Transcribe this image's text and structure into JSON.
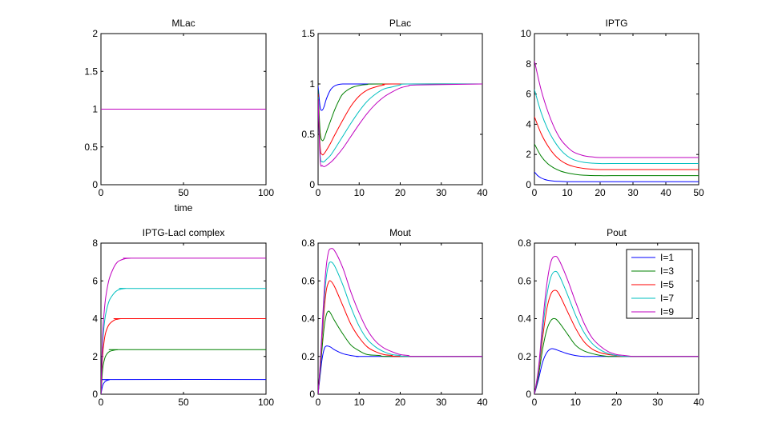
{
  "chart_data": [
    {
      "type": "line",
      "title": "MLac",
      "xlabel": "time",
      "ylabel": "",
      "xlim": [
        0,
        100
      ],
      "ylim": [
        0,
        2
      ],
      "xticks": [
        0,
        50,
        100
      ],
      "xtick_labels": [
        "0",
        "50",
        "100"
      ],
      "yticks": [
        0,
        0.5,
        1,
        1.5,
        2
      ],
      "ytick_labels": [
        "0",
        "0.5",
        "1",
        "1.5",
        "2"
      ],
      "series": [
        {
          "name": "I=1",
          "color": "#0000ff",
          "x": [
            0,
            100
          ],
          "y": [
            1,
            1
          ]
        },
        {
          "name": "I=3",
          "color": "#008000",
          "x": [
            0,
            100
          ],
          "y": [
            1,
            1
          ]
        },
        {
          "name": "I=5",
          "color": "#ff0000",
          "x": [
            0,
            100
          ],
          "y": [
            1,
            1
          ]
        },
        {
          "name": "I=7",
          "color": "#00bfbf",
          "x": [
            0,
            100
          ],
          "y": [
            1,
            1
          ]
        },
        {
          "name": "I=9",
          "color": "#bf00bf",
          "x": [
            0,
            100
          ],
          "y": [
            1,
            1
          ]
        }
      ]
    },
    {
      "type": "line",
      "title": "PLac",
      "xlabel": "",
      "ylabel": "",
      "xlim": [
        0,
        40
      ],
      "ylim": [
        0,
        1.5
      ],
      "xticks": [
        0,
        10,
        20,
        30,
        40
      ],
      "xtick_labels": [
        "0",
        "10",
        "20",
        "30",
        "40"
      ],
      "yticks": [
        0,
        0.5,
        1,
        1.5
      ],
      "ytick_labels": [
        "0",
        "0.5",
        "1",
        "1.5"
      ],
      "series": [
        {
          "name": "I=1",
          "color": "#0000ff",
          "x": [
            0,
            0.5,
            1,
            1.5,
            2,
            3,
            4,
            5,
            6,
            8,
            10,
            40
          ],
          "y": [
            0.98,
            0.77,
            0.74,
            0.78,
            0.85,
            0.94,
            0.98,
            0.995,
            1.0,
            1.0,
            1.0,
            1.0
          ]
        },
        {
          "name": "I=3",
          "color": "#008000",
          "x": [
            0,
            0.5,
            1,
            1.5,
            2,
            3,
            4,
            5,
            6,
            8,
            10,
            12,
            15,
            40
          ],
          "y": [
            0.94,
            0.52,
            0.44,
            0.46,
            0.52,
            0.63,
            0.74,
            0.83,
            0.9,
            0.96,
            0.985,
            0.995,
            1.0,
            1.0
          ]
        },
        {
          "name": "I=5",
          "color": "#ff0000",
          "x": [
            0,
            0.5,
            1,
            1.5,
            2,
            3,
            4,
            6,
            8,
            10,
            12,
            14,
            16,
            18,
            40
          ],
          "y": [
            0.9,
            0.38,
            0.3,
            0.31,
            0.34,
            0.41,
            0.49,
            0.64,
            0.78,
            0.88,
            0.94,
            0.97,
            0.99,
            1.0,
            1.0
          ]
        },
        {
          "name": "I=7",
          "color": "#00bfbf",
          "x": [
            0,
            0.5,
            1,
            1.5,
            2,
            3,
            4,
            6,
            8,
            10,
            12,
            14,
            16,
            18,
            20,
            22,
            40
          ],
          "y": [
            0.87,
            0.3,
            0.23,
            0.23,
            0.25,
            0.29,
            0.35,
            0.48,
            0.61,
            0.73,
            0.83,
            0.9,
            0.95,
            0.97,
            0.99,
            1.0,
            1.0
          ]
        },
        {
          "name": "I=9",
          "color": "#bf00bf",
          "x": [
            0,
            0.5,
            1,
            1.5,
            2,
            3,
            4,
            6,
            8,
            10,
            12,
            14,
            16,
            18,
            20,
            22,
            24,
            40
          ],
          "y": [
            0.85,
            0.25,
            0.19,
            0.18,
            0.19,
            0.22,
            0.26,
            0.36,
            0.48,
            0.6,
            0.71,
            0.8,
            0.87,
            0.92,
            0.96,
            0.98,
            0.99,
            1.0
          ]
        }
      ]
    },
    {
      "type": "line",
      "title": "IPTG",
      "xlabel": "",
      "ylabel": "",
      "xlim": [
        0,
        50
      ],
      "ylim": [
        0,
        10
      ],
      "xticks": [
        0,
        10,
        20,
        30,
        40,
        50
      ],
      "xtick_labels": [
        "0",
        "10",
        "20",
        "30",
        "40",
        "50"
      ],
      "yticks": [
        0,
        2,
        4,
        6,
        8,
        10
      ],
      "ytick_labels": [
        "0",
        "2",
        "4",
        "6",
        "8",
        "10"
      ],
      "series": [
        {
          "name": "I=1",
          "color": "#0000ff",
          "x": [
            0,
            1,
            2,
            3,
            4,
            6,
            8,
            10,
            15,
            20,
            50
          ],
          "y": [
            0.85,
            0.6,
            0.45,
            0.36,
            0.3,
            0.24,
            0.22,
            0.2,
            0.2,
            0.2,
            0.2
          ]
        },
        {
          "name": "I=3",
          "color": "#008000",
          "x": [
            0,
            2,
            4,
            6,
            8,
            10,
            12,
            15,
            20,
            25,
            50
          ],
          "y": [
            2.7,
            1.9,
            1.4,
            1.1,
            0.9,
            0.78,
            0.7,
            0.63,
            0.6,
            0.6,
            0.6
          ]
        },
        {
          "name": "I=5",
          "color": "#ff0000",
          "x": [
            0,
            2,
            4,
            6,
            8,
            10,
            12,
            15,
            18,
            20,
            25,
            50
          ],
          "y": [
            4.5,
            3.4,
            2.6,
            2.0,
            1.6,
            1.35,
            1.2,
            1.08,
            1.02,
            1.0,
            1.0,
            1.0
          ]
        },
        {
          "name": "I=7",
          "color": "#00bfbf",
          "x": [
            0,
            2,
            4,
            6,
            8,
            10,
            12,
            15,
            18,
            20,
            25,
            50
          ],
          "y": [
            6.3,
            4.8,
            3.7,
            2.9,
            2.3,
            1.9,
            1.65,
            1.48,
            1.42,
            1.4,
            1.4,
            1.4
          ]
        },
        {
          "name": "I=9",
          "color": "#bf00bf",
          "x": [
            0,
            2,
            4,
            6,
            8,
            10,
            12,
            15,
            18,
            20,
            25,
            50
          ],
          "y": [
            8.2,
            6.3,
            4.9,
            3.8,
            3.0,
            2.5,
            2.15,
            1.92,
            1.83,
            1.8,
            1.8,
            1.8
          ]
        }
      ]
    },
    {
      "type": "line",
      "title": "IPTG-LacI complex",
      "xlabel": "",
      "ylabel": "",
      "xlim": [
        0,
        100
      ],
      "ylim": [
        0,
        8
      ],
      "xticks": [
        0,
        50,
        100
      ],
      "xtick_labels": [
        "0",
        "50",
        "100"
      ],
      "yticks": [
        0,
        2,
        4,
        6,
        8
      ],
      "ytick_labels": [
        "0",
        "2",
        "4",
        "6",
        "8"
      ],
      "series": [
        {
          "name": "I=1",
          "color": "#0000ff",
          "x": [
            0,
            1,
            2,
            3,
            5,
            8,
            100
          ],
          "y": [
            0,
            0.45,
            0.62,
            0.7,
            0.76,
            0.78,
            0.78
          ]
        },
        {
          "name": "I=3",
          "color": "#008000",
          "x": [
            0,
            1,
            2,
            3,
            5,
            8,
            10,
            12,
            100
          ],
          "y": [
            0,
            1.3,
            1.8,
            2.05,
            2.25,
            2.33,
            2.35,
            2.36,
            2.36
          ]
        },
        {
          "name": "I=5",
          "color": "#ff0000",
          "x": [
            0,
            1,
            2,
            3,
            5,
            8,
            10,
            12,
            15,
            100
          ],
          "y": [
            0,
            2.0,
            2.85,
            3.3,
            3.7,
            3.92,
            3.97,
            4.0,
            4.0,
            4.0
          ]
        },
        {
          "name": "I=7",
          "color": "#00bfbf",
          "x": [
            0,
            1,
            2,
            3,
            5,
            8,
            10,
            12,
            15,
            18,
            100
          ],
          "y": [
            0,
            2.6,
            3.7,
            4.3,
            4.95,
            5.35,
            5.5,
            5.56,
            5.6,
            5.6,
            5.6
          ]
        },
        {
          "name": "I=9",
          "color": "#bf00bf",
          "x": [
            0,
            1,
            2,
            3,
            5,
            8,
            10,
            12,
            15,
            18,
            20,
            100
          ],
          "y": [
            0,
            3.1,
            4.4,
            5.2,
            6.1,
            6.75,
            7.0,
            7.1,
            7.18,
            7.2,
            7.2,
            7.2
          ]
        }
      ]
    },
    {
      "type": "line",
      "title": "Mout",
      "xlabel": "",
      "ylabel": "",
      "xlim": [
        0,
        40
      ],
      "ylim": [
        0,
        0.8
      ],
      "xticks": [
        0,
        10,
        20,
        30,
        40
      ],
      "xtick_labels": [
        "0",
        "10",
        "20",
        "30",
        "40"
      ],
      "yticks": [
        0,
        0.2,
        0.4,
        0.6,
        0.8
      ],
      "ytick_labels": [
        "0",
        "0.2",
        "0.4",
        "0.6",
        "0.8"
      ],
      "series": [
        {
          "name": "I=1",
          "color": "#0000ff",
          "x": [
            0,
            0.5,
            1,
            1.5,
            2,
            3,
            4,
            6,
            8,
            10,
            12,
            40
          ],
          "y": [
            0,
            0.1,
            0.19,
            0.24,
            0.255,
            0.25,
            0.235,
            0.215,
            0.205,
            0.2,
            0.2,
            0.2
          ]
        },
        {
          "name": "I=3",
          "color": "#008000",
          "x": [
            0,
            0.5,
            1,
            1.5,
            2,
            2.5,
            3,
            4,
            6,
            8,
            10,
            12,
            15,
            18,
            40
          ],
          "y": [
            0,
            0.12,
            0.25,
            0.36,
            0.42,
            0.44,
            0.43,
            0.39,
            0.32,
            0.26,
            0.23,
            0.21,
            0.205,
            0.2,
            0.2
          ]
        },
        {
          "name": "I=5",
          "color": "#ff0000",
          "x": [
            0,
            0.5,
            1,
            1.5,
            2,
            2.5,
            3,
            4,
            6,
            8,
            10,
            12,
            14,
            16,
            18,
            20,
            40
          ],
          "y": [
            0,
            0.14,
            0.3,
            0.45,
            0.55,
            0.59,
            0.6,
            0.57,
            0.47,
            0.37,
            0.3,
            0.25,
            0.225,
            0.21,
            0.205,
            0.2,
            0.2
          ]
        },
        {
          "name": "I=7",
          "color": "#00bfbf",
          "x": [
            0,
            0.5,
            1,
            1.5,
            2,
            2.5,
            3,
            4,
            6,
            8,
            10,
            12,
            14,
            16,
            18,
            20,
            22,
            40
          ],
          "y": [
            0,
            0.15,
            0.33,
            0.5,
            0.62,
            0.68,
            0.7,
            0.68,
            0.58,
            0.46,
            0.36,
            0.29,
            0.25,
            0.225,
            0.21,
            0.205,
            0.2,
            0.2
          ]
        },
        {
          "name": "I=9",
          "color": "#bf00bf",
          "x": [
            0,
            0.5,
            1,
            1.5,
            2,
            2.5,
            3,
            4,
            6,
            8,
            10,
            12,
            14,
            16,
            18,
            20,
            22,
            24,
            40
          ],
          "y": [
            0,
            0.16,
            0.36,
            0.55,
            0.68,
            0.75,
            0.77,
            0.76,
            0.67,
            0.54,
            0.43,
            0.34,
            0.28,
            0.245,
            0.225,
            0.21,
            0.205,
            0.2,
            0.2
          ]
        }
      ]
    },
    {
      "type": "line",
      "title": "Pout",
      "xlabel": "",
      "ylabel": "",
      "xlim": [
        0,
        40
      ],
      "ylim": [
        0,
        0.8
      ],
      "xticks": [
        0,
        10,
        20,
        30,
        40
      ],
      "xtick_labels": [
        "0",
        "10",
        "20",
        "30",
        "40"
      ],
      "yticks": [
        0,
        0.2,
        0.4,
        0.6,
        0.8
      ],
      "ytick_labels": [
        "0",
        "0.2",
        "0.4",
        "0.6",
        "0.8"
      ],
      "legend": {
        "location": "top-right",
        "entries": [
          "I=1",
          "I=3",
          "I=5",
          "I=7",
          "I=9"
        ]
      },
      "series": [
        {
          "name": "I=1",
          "color": "#0000ff",
          "x": [
            0,
            1,
            2,
            3,
            4,
            5,
            6,
            8,
            10,
            12,
            15,
            40
          ],
          "y": [
            0,
            0.08,
            0.17,
            0.22,
            0.24,
            0.238,
            0.23,
            0.215,
            0.205,
            0.2,
            0.2,
            0.2
          ]
        },
        {
          "name": "I=3",
          "color": "#008000",
          "x": [
            0,
            1,
            2,
            3,
            4,
            5,
            6,
            8,
            10,
            12,
            15,
            18,
            20,
            40
          ],
          "y": [
            0,
            0.1,
            0.24,
            0.34,
            0.39,
            0.4,
            0.38,
            0.32,
            0.26,
            0.23,
            0.21,
            0.2,
            0.2,
            0.2
          ]
        },
        {
          "name": "I=5",
          "color": "#ff0000",
          "x": [
            0,
            1,
            2,
            3,
            4,
            5,
            6,
            8,
            10,
            12,
            14,
            16,
            18,
            20,
            22,
            40
          ],
          "y": [
            0,
            0.12,
            0.3,
            0.45,
            0.53,
            0.55,
            0.53,
            0.44,
            0.35,
            0.28,
            0.24,
            0.22,
            0.21,
            0.205,
            0.2,
            0.2
          ]
        },
        {
          "name": "I=7",
          "color": "#00bfbf",
          "x": [
            0,
            1,
            2,
            3,
            4,
            5,
            6,
            8,
            10,
            12,
            14,
            16,
            18,
            20,
            22,
            24,
            40
          ],
          "y": [
            0,
            0.13,
            0.34,
            0.52,
            0.62,
            0.65,
            0.63,
            0.53,
            0.42,
            0.33,
            0.27,
            0.235,
            0.215,
            0.205,
            0.2,
            0.2,
            0.2
          ]
        },
        {
          "name": "I=9",
          "color": "#bf00bf",
          "x": [
            0,
            1,
            2,
            3,
            4,
            5,
            6,
            8,
            10,
            12,
            14,
            16,
            18,
            20,
            22,
            24,
            26,
            40
          ],
          "y": [
            0,
            0.14,
            0.38,
            0.58,
            0.7,
            0.73,
            0.71,
            0.61,
            0.49,
            0.38,
            0.3,
            0.255,
            0.225,
            0.21,
            0.205,
            0.2,
            0.2,
            0.2
          ]
        }
      ]
    }
  ]
}
